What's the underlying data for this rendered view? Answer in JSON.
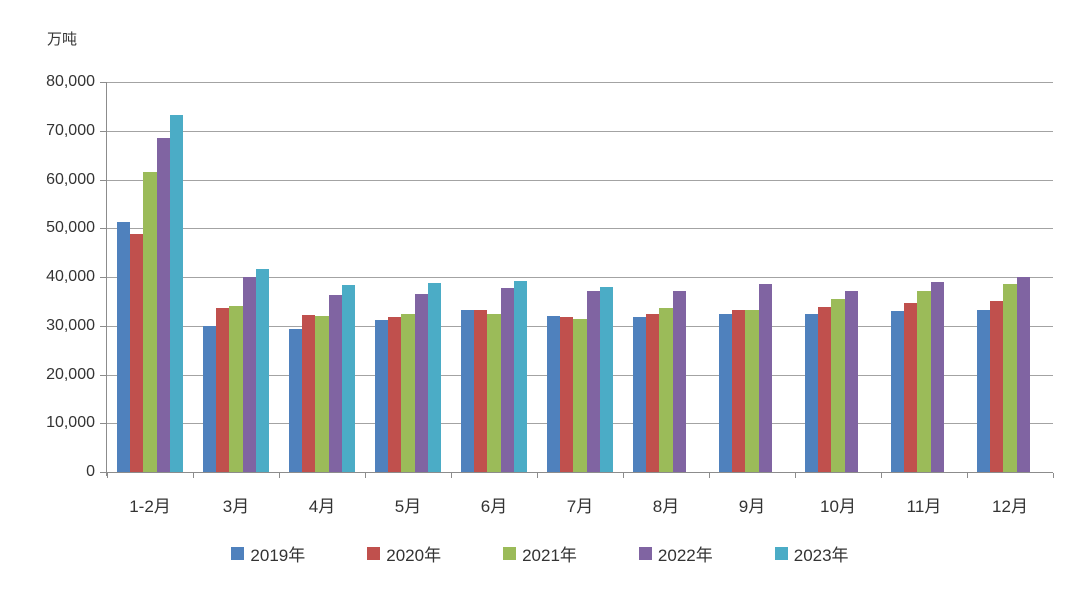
{
  "chart_data": {
    "type": "bar",
    "title": "",
    "unit_label": "万吨",
    "categories": [
      "1-2月",
      "3月",
      "4月",
      "5月",
      "6月",
      "7月",
      "8月",
      "9月",
      "10月",
      "11月",
      "12月"
    ],
    "series": [
      {
        "name": "2019年",
        "color": "#4F81BD",
        "values": [
          51300,
          30000,
          29400,
          31200,
          33200,
          32100,
          31700,
          32400,
          32400,
          33100,
          33200
        ]
      },
      {
        "name": "2020年",
        "color": "#C0504D",
        "values": [
          48900,
          33600,
          32200,
          31800,
          33200,
          31700,
          32500,
          33300,
          33800,
          34700,
          35100
        ]
      },
      {
        "name": "2021年",
        "color": "#9BBB59",
        "values": [
          61500,
          34100,
          32100,
          32400,
          32500,
          31300,
          33700,
          33300,
          35500,
          37100,
          38600
        ]
      },
      {
        "name": "2022年",
        "color": "#8064A2",
        "values": [
          68600,
          40000,
          36300,
          36600,
          37700,
          37100,
          37200,
          38600,
          37200,
          38900,
          40100
        ]
      },
      {
        "name": "2023年",
        "color": "#4BACC6",
        "values": [
          73300,
          41700,
          38300,
          38700,
          39100,
          37900,
          null,
          null,
          null,
          null,
          null
        ]
      }
    ],
    "ylim": [
      0,
      80000
    ],
    "y_tick_step": 10000,
    "y_tick_labels": [
      "0",
      "10,000",
      "20,000",
      "30,000",
      "40,000",
      "50,000",
      "60,000",
      "70,000",
      "80,000"
    ],
    "grid": true,
    "legend_position": "bottom"
  },
  "colors": {
    "background": "#FFFFFF",
    "gridline": "#A3A3A3",
    "axis": "#8C8C8C",
    "text": "#333333"
  }
}
